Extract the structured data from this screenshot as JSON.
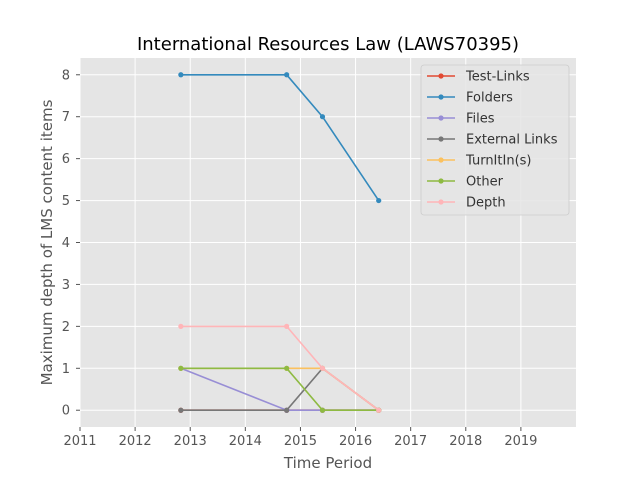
{
  "chart_data": {
    "type": "line",
    "title": "International Resources Law (LAWS70395)",
    "xlabel": "Time Period",
    "ylabel": "Maximum depth of LMS content items",
    "xlim": [
      2011,
      2020
    ],
    "ylim": [
      -0.4,
      8.4
    ],
    "xticks": [
      2011,
      2012,
      2013,
      2014,
      2015,
      2016,
      2017,
      2018,
      2019
    ],
    "xtick_labels": [
      "2011",
      "2012",
      "2013",
      "2014",
      "2015",
      "2016",
      "2017",
      "2018",
      "2019"
    ],
    "yticks": [
      0,
      1,
      2,
      3,
      4,
      5,
      6,
      7,
      8
    ],
    "ytick_labels": [
      "0",
      "1",
      "2",
      "3",
      "4",
      "5",
      "6",
      "7",
      "8"
    ],
    "grid": true,
    "legend_position": "top-right",
    "series": [
      {
        "name": "Test-Links",
        "color": "#E24A33",
        "points": [
          [
            2012.83,
            0
          ],
          [
            2014.75,
            0
          ],
          [
            2015.4,
            0
          ],
          [
            2016.42,
            0
          ]
        ]
      },
      {
        "name": "Folders",
        "color": "#348ABD",
        "points": [
          [
            2012.83,
            8
          ],
          [
            2014.75,
            8
          ],
          [
            2015.4,
            7
          ],
          [
            2016.42,
            5
          ]
        ]
      },
      {
        "name": "Files",
        "color": "#988ED5",
        "points": [
          [
            2012.83,
            1
          ],
          [
            2014.75,
            0
          ],
          [
            2015.4,
            0
          ],
          [
            2016.42,
            0
          ]
        ]
      },
      {
        "name": "External Links",
        "color": "#777777",
        "points": [
          [
            2012.83,
            0
          ],
          [
            2014.75,
            0
          ],
          [
            2015.4,
            1
          ],
          [
            2016.42,
            0
          ]
        ]
      },
      {
        "name": "TurnItIn(s)",
        "color": "#FBC15E",
        "points": [
          [
            2012.83,
            1
          ],
          [
            2014.75,
            1
          ],
          [
            2015.4,
            1
          ],
          [
            2016.42,
            0
          ]
        ]
      },
      {
        "name": "Other",
        "color": "#8EBA42",
        "points": [
          [
            2012.83,
            1
          ],
          [
            2014.75,
            1
          ],
          [
            2015.4,
            0
          ],
          [
            2016.42,
            0
          ]
        ]
      },
      {
        "name": "Depth",
        "color": "#FFB5B8",
        "points": [
          [
            2012.83,
            2
          ],
          [
            2014.75,
            2
          ],
          [
            2015.4,
            1
          ],
          [
            2016.42,
            0
          ]
        ]
      }
    ]
  }
}
